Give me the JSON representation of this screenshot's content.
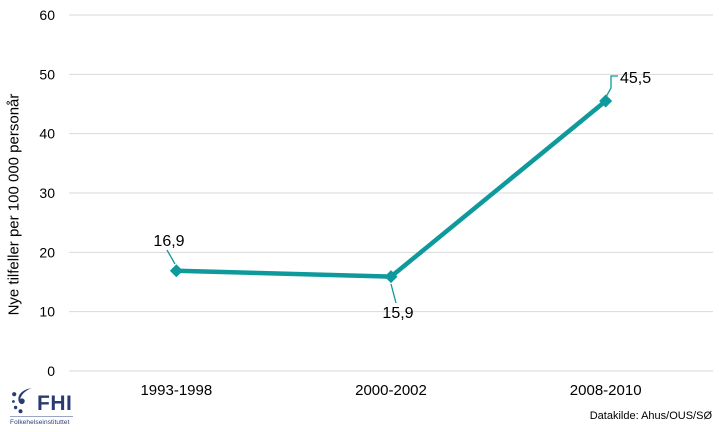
{
  "chart_data": {
    "type": "line",
    "title": "",
    "xlabel": "",
    "ylabel": "Nye tilfeller per 100 000 personår",
    "categories": [
      "1993-1998",
      "2000-2002",
      "2008-2010"
    ],
    "series": [
      {
        "name": "Nye tilfeller",
        "values": [
          16.9,
          15.9,
          45.5
        ],
        "point_labels": [
          "16,9",
          "15,9",
          "45,5"
        ]
      }
    ],
    "ylim": [
      0,
      60
    ],
    "yticks": [
      0,
      10,
      20,
      30,
      40,
      50,
      60
    ],
    "grid": "horizontal",
    "legend": "none",
    "marker": "diamond",
    "series_color": "#0E999C",
    "grid_color": "#D9D9D9"
  },
  "footer": {
    "source": "Datakilde: Ahus/OUS/SØ",
    "logo": {
      "abbr": "FHI",
      "name": "Folkehelseinstituttet",
      "color": "#2A3B72"
    }
  }
}
